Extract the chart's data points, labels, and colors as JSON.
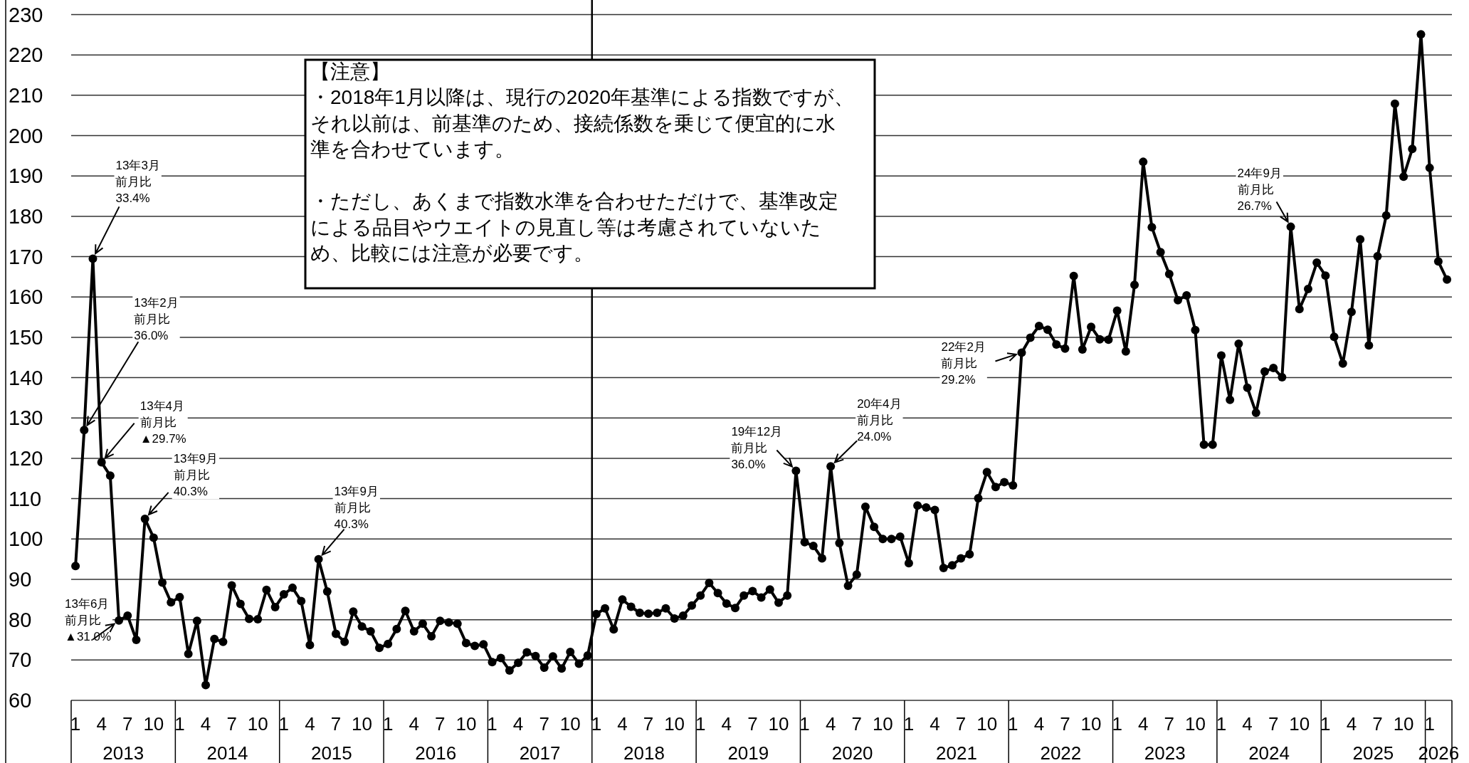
{
  "chart_data": {
    "type": "line",
    "x": [
      "2013-01",
      "2013-02",
      "2013-03",
      "2013-04",
      "2013-05",
      "2013-06",
      "2013-07",
      "2013-08",
      "2013-09",
      "2013-10",
      "2013-11",
      "2013-12",
      "2014-01",
      "2014-02",
      "2014-03",
      "2014-04",
      "2014-05",
      "2014-06",
      "2014-07",
      "2014-08",
      "2014-09",
      "2014-10",
      "2014-11",
      "2014-12",
      "2015-01",
      "2015-02",
      "2015-03",
      "2015-04",
      "2015-05",
      "2015-06",
      "2015-07",
      "2015-08",
      "2015-09",
      "2015-10",
      "2015-11",
      "2015-12",
      "2016-01",
      "2016-02",
      "2016-03",
      "2016-04",
      "2016-05",
      "2016-06",
      "2016-07",
      "2016-08",
      "2016-09",
      "2016-10",
      "2016-11",
      "2016-12",
      "2017-01",
      "2017-02",
      "2017-03",
      "2017-04",
      "2017-05",
      "2017-06",
      "2017-07",
      "2017-08",
      "2017-09",
      "2017-10",
      "2017-11",
      "2017-12",
      "2018-01",
      "2018-02",
      "2018-03",
      "2018-04",
      "2018-05",
      "2018-06",
      "2018-07",
      "2018-08",
      "2018-09",
      "2018-10",
      "2018-11",
      "2018-12",
      "2019-01",
      "2019-02",
      "2019-03",
      "2019-04",
      "2019-05",
      "2019-06",
      "2019-07",
      "2019-08",
      "2019-09",
      "2019-10",
      "2019-11",
      "2019-12",
      "2020-01",
      "2020-02",
      "2020-03",
      "2020-04",
      "2020-05",
      "2020-06",
      "2020-07",
      "2020-08",
      "2020-09",
      "2020-10",
      "2020-11",
      "2020-12",
      "2021-01",
      "2021-02",
      "2021-03",
      "2021-04",
      "2021-05",
      "2021-06",
      "2021-07",
      "2021-08",
      "2021-09",
      "2021-10",
      "2021-11",
      "2021-12",
      "2022-01",
      "2022-02",
      "2022-03",
      "2022-04",
      "2022-05",
      "2022-06",
      "2022-07",
      "2022-08",
      "2022-09",
      "2022-10",
      "2022-11",
      "2022-12",
      "2023-01",
      "2023-02",
      "2023-03",
      "2023-04",
      "2023-05",
      "2023-06",
      "2023-07",
      "2023-08",
      "2023-09",
      "2023-10",
      "2023-11",
      "2023-12",
      "2024-01",
      "2024-02",
      "2024-03",
      "2024-04",
      "2024-05",
      "2024-06",
      "2024-07",
      "2024-08",
      "2024-09",
      "2024-10",
      "2024-11",
      "2024-12",
      "2025-01",
      "2025-02",
      "2025-03",
      "2025-04",
      "2025-05",
      "2025-06",
      "2025-07",
      "2025-08",
      "2025-09",
      "2025-10",
      "2025-11",
      "2025-12",
      "2026-01",
      "2026-02",
      "2026-03"
    ],
    "series": [
      {
        "color": "#000000",
        "values": [
          93.3,
          127,
          169.5,
          119,
          115.7,
          79.8,
          81,
          75,
          105,
          100.3,
          89.2,
          84.3,
          85.6,
          71.5,
          79.7,
          63.8,
          75.2,
          74.5,
          88.5,
          83.9,
          80.2,
          80.1,
          87.4,
          83.1,
          86.3,
          87.9,
          84.6,
          73.7,
          95,
          87,
          76.5,
          74.5,
          82,
          78.3,
          77.1,
          73,
          74,
          77.7,
          82.2,
          77.1,
          79,
          75.9,
          79.7,
          79.3,
          79,
          74.2,
          73.5,
          73.9,
          69.5,
          70.5,
          67.4,
          69.3,
          71.9,
          71,
          68.1,
          70.9,
          67.9,
          72,
          69.1,
          71.1,
          81.4,
          82.8,
          77.6,
          85,
          83.2,
          81.7,
          81.5,
          81.7,
          82.8,
          80.3,
          81,
          83.5,
          86,
          89.1,
          86.6,
          84,
          82.9,
          86,
          87.1,
          85.5,
          87.5,
          84.2,
          86,
          116.9,
          99.2,
          98.3,
          95.2,
          118,
          99,
          88.4,
          91.2,
          108,
          103,
          100,
          100,
          100.6,
          94,
          108.3,
          107.8,
          107.2,
          92.8,
          93.5,
          95.2,
          96.2,
          110.1,
          116.6,
          112.9,
          114.1,
          113.3,
          146.2,
          149.9,
          152.8,
          151.9,
          148.2,
          147.2,
          165.2,
          147,
          152.6,
          149.5,
          149.4,
          156.6,
          146.5,
          163,
          193.5,
          177.3,
          171.1,
          165.7,
          159.2,
          160.4,
          151.8,
          123.4,
          123.4,
          145.5,
          134.5,
          148.4,
          137.5,
          131.3,
          141.5,
          142.4,
          140.1,
          177.4,
          157,
          162,
          168.5,
          165.3,
          150.1,
          143.5,
          156.3,
          174.3,
          148,
          170.1,
          180.2,
          207.9,
          189.8,
          196.7,
          225.1,
          192,
          168.8,
          164.3
        ]
      }
    ],
    "xlim": [
      "2012-12-16",
      "2026-03-18"
    ],
    "xticks": [
      {
        "value": "2013-01",
        "label": "1"
      },
      {
        "value": "2013-04",
        "label": "4"
      },
      {
        "value": "2013-07",
        "label": "7"
      },
      {
        "value": "2013-10",
        "label": "10"
      },
      {
        "value": "2014-01",
        "label": "1"
      },
      {
        "value": "2014-04",
        "label": "4"
      },
      {
        "value": "2014-07",
        "label": "7"
      },
      {
        "value": "2014-10",
        "label": "10"
      },
      {
        "value": "2015-01",
        "label": "1"
      },
      {
        "value": "2015-04",
        "label": "4"
      },
      {
        "value": "2015-07",
        "label": "7"
      },
      {
        "value": "2015-10",
        "label": "10"
      },
      {
        "value": "2016-01",
        "label": "1"
      },
      {
        "value": "2016-04",
        "label": "4"
      },
      {
        "value": "2016-07",
        "label": "7"
      },
      {
        "value": "2016-10",
        "label": "10"
      },
      {
        "value": "2017-01",
        "label": "1"
      },
      {
        "value": "2017-04",
        "label": "4"
      },
      {
        "value": "2017-07",
        "label": "7"
      },
      {
        "value": "2017-10",
        "label": "10"
      },
      {
        "value": "2018-01",
        "label": "1"
      },
      {
        "value": "2018-04",
        "label": "4"
      },
      {
        "value": "2018-07",
        "label": "7"
      },
      {
        "value": "2018-10",
        "label": "10"
      },
      {
        "value": "2019-01",
        "label": "1"
      },
      {
        "value": "2019-04",
        "label": "4"
      },
      {
        "value": "2019-07",
        "label": "7"
      },
      {
        "value": "2019-10",
        "label": "10"
      },
      {
        "value": "2020-01",
        "label": "1"
      },
      {
        "value": "2020-04",
        "label": "4"
      },
      {
        "value": "2020-07",
        "label": "7"
      },
      {
        "value": "2020-10",
        "label": "10"
      },
      {
        "value": "2021-01",
        "label": "1"
      },
      {
        "value": "2021-04",
        "label": "4"
      },
      {
        "value": "2021-07",
        "label": "7"
      },
      {
        "value": "2021-10",
        "label": "10"
      },
      {
        "value": "2022-01",
        "label": "1"
      },
      {
        "value": "2022-04",
        "label": "4"
      },
      {
        "value": "2022-07",
        "label": "7"
      },
      {
        "value": "2022-10",
        "label": "10"
      },
      {
        "value": "2023-01",
        "label": "1"
      },
      {
        "value": "2023-04",
        "label": "4"
      },
      {
        "value": "2023-07",
        "label": "7"
      },
      {
        "value": "2023-10",
        "label": "10"
      },
      {
        "value": "2024-01",
        "label": "1"
      },
      {
        "value": "2024-04",
        "label": "4"
      },
      {
        "value": "2024-07",
        "label": "7"
      },
      {
        "value": "2024-10",
        "label": "10"
      },
      {
        "value": "2025-01",
        "label": "1"
      },
      {
        "value": "2025-04",
        "label": "4"
      },
      {
        "value": "2025-07",
        "label": "7"
      },
      {
        "value": "2025-10",
        "label": "10"
      },
      {
        "value": "2026-01",
        "label": "1"
      }
    ],
    "ylim": [
      60,
      230
    ],
    "yticks": [
      60,
      70,
      80,
      90,
      100,
      110,
      120,
      130,
      140,
      150,
      160,
      170,
      180,
      190,
      200,
      210,
      220,
      230
    ],
    "grid": "y",
    "marker": "circle",
    "line_style": "solid",
    "ref_lines": [
      {
        "axis": "x",
        "value": "2017-12-16",
        "color": "#000000"
      }
    ],
    "annotations": [
      "【注意】",
      "・2018年1月以降は、現行の2020年基準による指数ですが、それ以前は、前基準のため、接続係数を乗じて便宜的に水準を合わせています。",
      "・ただし、あくまで指数水準を合わせただけで、基準改定による品目やウエイトの見直し等は考慮されていないため、比較には注意が必要です。",
      {
        "text": "13年3月前月比33.4%",
        "x": "2013-03",
        "y": 169.5
      },
      {
        "text": "13年2月前月比36.0%",
        "x": "2013-02",
        "y": 127
      },
      {
        "text": "13年4月前月比▲29.7%",
        "x": "2013-04",
        "y": 119
      },
      {
        "text": "13年9月前月比40.3%",
        "x": "2013-09",
        "y": 105
      },
      {
        "text": "13年6月前月比▲31.0%",
        "x": "2013-06",
        "y": 79.8
      },
      {
        "text": "13年9月前月比40.3%",
        "x": "2015-05",
        "y": 95
      },
      {
        "text": "19年12月前月比36.0%",
        "x": "2019-12",
        "y": 116.9
      },
      {
        "text": "20年4月前月比24.0%",
        "x": "2020-04",
        "y": 118
      },
      {
        "text": "22年2月前月比29.2%",
        "x": "2022-02",
        "y": 146.2
      },
      {
        "text": "24年9月前月比26.7%",
        "x": "2024-09",
        "y": 177.4
      },
      "2013",
      "2014",
      "2015",
      "2016",
      "2017",
      "2018",
      "2019",
      "2020",
      "2021",
      "2022",
      "2023",
      "2024",
      "2025",
      "2026"
    ]
  }
}
